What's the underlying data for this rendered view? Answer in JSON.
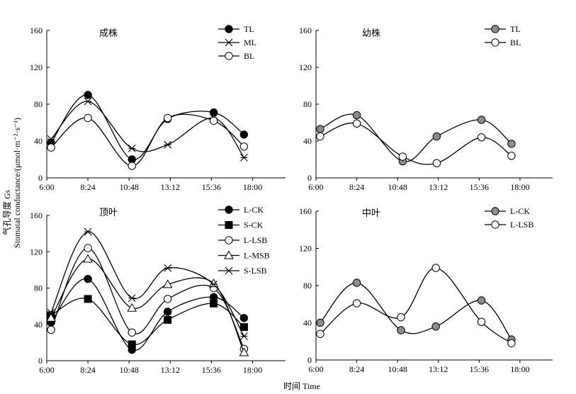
{
  "figure": {
    "ylabel_cn": "气孔导度",
    "ylabel_var": "Gs",
    "ylabel_en": "Stomatal conductance/(μmol·m⁻²·s⁻¹)",
    "xlabel": "时间 Time"
  },
  "chart_data": [
    {
      "type": "line",
      "title": "成株",
      "categories": [
        "6:00",
        "8:24",
        "10:48",
        "13:12",
        "15:36",
        "18:00"
      ],
      "x_times": [
        "6:15",
        "8:24",
        "10:58",
        "13:03",
        "15:44",
        "17:30"
      ],
      "ylim": [
        0,
        160
      ],
      "yticks": [
        0,
        40,
        80,
        120,
        160
      ],
      "legend_position": "top-right",
      "series": [
        {
          "name": "TL",
          "marker": "filled-circle",
          "values": [
            38,
            90,
            20,
            64,
            71,
            47
          ]
        },
        {
          "name": "ML",
          "marker": "asterisk",
          "values": [
            42,
            83,
            32,
            36,
            65,
            22
          ]
        },
        {
          "name": "BL",
          "marker": "open-circle",
          "values": [
            33,
            65,
            13,
            65,
            62,
            34
          ]
        }
      ]
    },
    {
      "type": "line",
      "title": "幼株",
      "categories": [
        "6:00",
        "8:24",
        "10:48",
        "13:12",
        "15:36",
        "18:00"
      ],
      "x_times": [
        "6:15",
        "8:24",
        "11:06",
        "13:06",
        "15:44",
        "17:30"
      ],
      "ylim": [
        0,
        160
      ],
      "yticks": [
        0,
        40,
        80,
        120,
        160
      ],
      "legend_position": "top-right",
      "series": [
        {
          "name": "TL",
          "marker": "gray-circle",
          "values": [
            53,
            68,
            18,
            45,
            63,
            37
          ]
        },
        {
          "name": "BL",
          "marker": "open-circle",
          "values": [
            45,
            59,
            23,
            16,
            44,
            24
          ]
        }
      ]
    },
    {
      "type": "line",
      "title": "顶叶",
      "categories": [
        "6:00",
        "8:24",
        "10:48",
        "13:12",
        "15:36",
        "18:00"
      ],
      "x_times": [
        "6:15",
        "8:24",
        "10:58",
        "13:03",
        "15:44",
        "17:30"
      ],
      "ylim": [
        0,
        160
      ],
      "yticks": [
        0,
        40,
        80,
        120,
        160
      ],
      "legend_position": "top-right",
      "series": [
        {
          "name": "L-CK",
          "marker": "filled-circle",
          "values": [
            42,
            90,
            12,
            54,
            70,
            47
          ]
        },
        {
          "name": "S-CK",
          "marker": "filled-square",
          "values": [
            50,
            68,
            18,
            45,
            63,
            37
          ]
        },
        {
          "name": "L-LSB",
          "marker": "open-circle",
          "values": [
            34,
            124,
            31,
            68,
            80,
            13
          ]
        },
        {
          "name": "L-MSB",
          "marker": "open-triangle",
          "values": [
            47,
            112,
            58,
            84,
            85,
            9
          ]
        },
        {
          "name": "S-LSB",
          "marker": "asterisk",
          "values": [
            53,
            142,
            69,
            102,
            84,
            27
          ]
        }
      ]
    },
    {
      "type": "line",
      "title": "中叶",
      "categories": [
        "6:00",
        "8:24",
        "10:48",
        "13:12",
        "15:36",
        "18:00"
      ],
      "x_times": [
        "6:15",
        "8:24",
        "11:00",
        "13:03",
        "15:44",
        "17:30"
      ],
      "ylim": [
        0,
        160
      ],
      "yticks": [
        0,
        40,
        80,
        120,
        160
      ],
      "legend_position": "top-right",
      "series": [
        {
          "name": "L-CK",
          "marker": "gray-circle",
          "values": [
            40,
            83,
            32,
            36,
            64,
            22
          ]
        },
        {
          "name": "L-LSB",
          "marker": "open-circle",
          "values": [
            28,
            61,
            46,
            99,
            41,
            18
          ]
        }
      ]
    }
  ],
  "colors": {
    "ink": "#000000",
    "gray_marker": "#8c8c8c",
    "open_marker": "#ffffff"
  }
}
